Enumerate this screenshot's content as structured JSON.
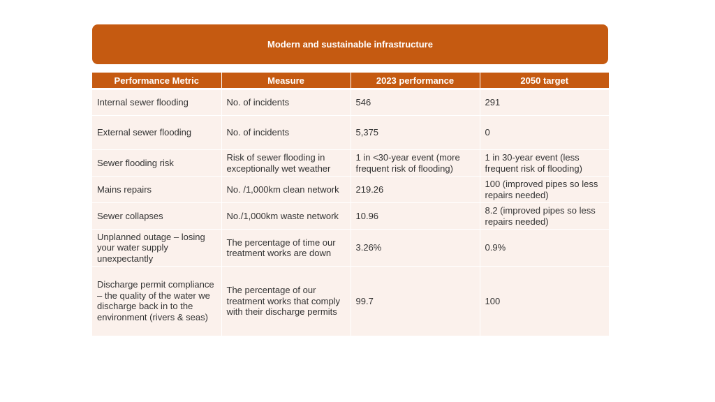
{
  "banner": {
    "title": "Modern and sustainable infrastructure"
  },
  "table": {
    "headers": [
      "Performance Metric",
      "Measure",
      "2023 performance",
      "2050 target"
    ],
    "rows": [
      [
        "Internal sewer flooding",
        "No. of incidents",
        "546",
        "291"
      ],
      [
        "External sewer flooding",
        "No. of incidents",
        "5,375",
        "0"
      ],
      [
        "Sewer flooding risk",
        "Risk of sewer flooding in exceptionally wet weather",
        "1 in <30-year event (more frequent risk of flooding)",
        "1 in 30-year event (less frequent risk of flooding)"
      ],
      [
        "Mains repairs",
        "No. /1,000km clean network",
        "219.26",
        "100 (improved pipes so less repairs needed)"
      ],
      [
        "Sewer collapses",
        "No./1,000km waste network",
        "10.96",
        "8.2 (improved pipes so less repairs needed)"
      ],
      [
        "Unplanned outage – losing your water supply unexpectantly",
        "The percentage of time our treatment works are down",
        "3.26%",
        "0.9%"
      ],
      [
        "Discharge permit compliance – the quality of the water we discharge back in to the environment (rivers & seas)",
        "The percentage of our treatment works that comply with their discharge permits",
        "99.7",
        "100"
      ]
    ]
  }
}
